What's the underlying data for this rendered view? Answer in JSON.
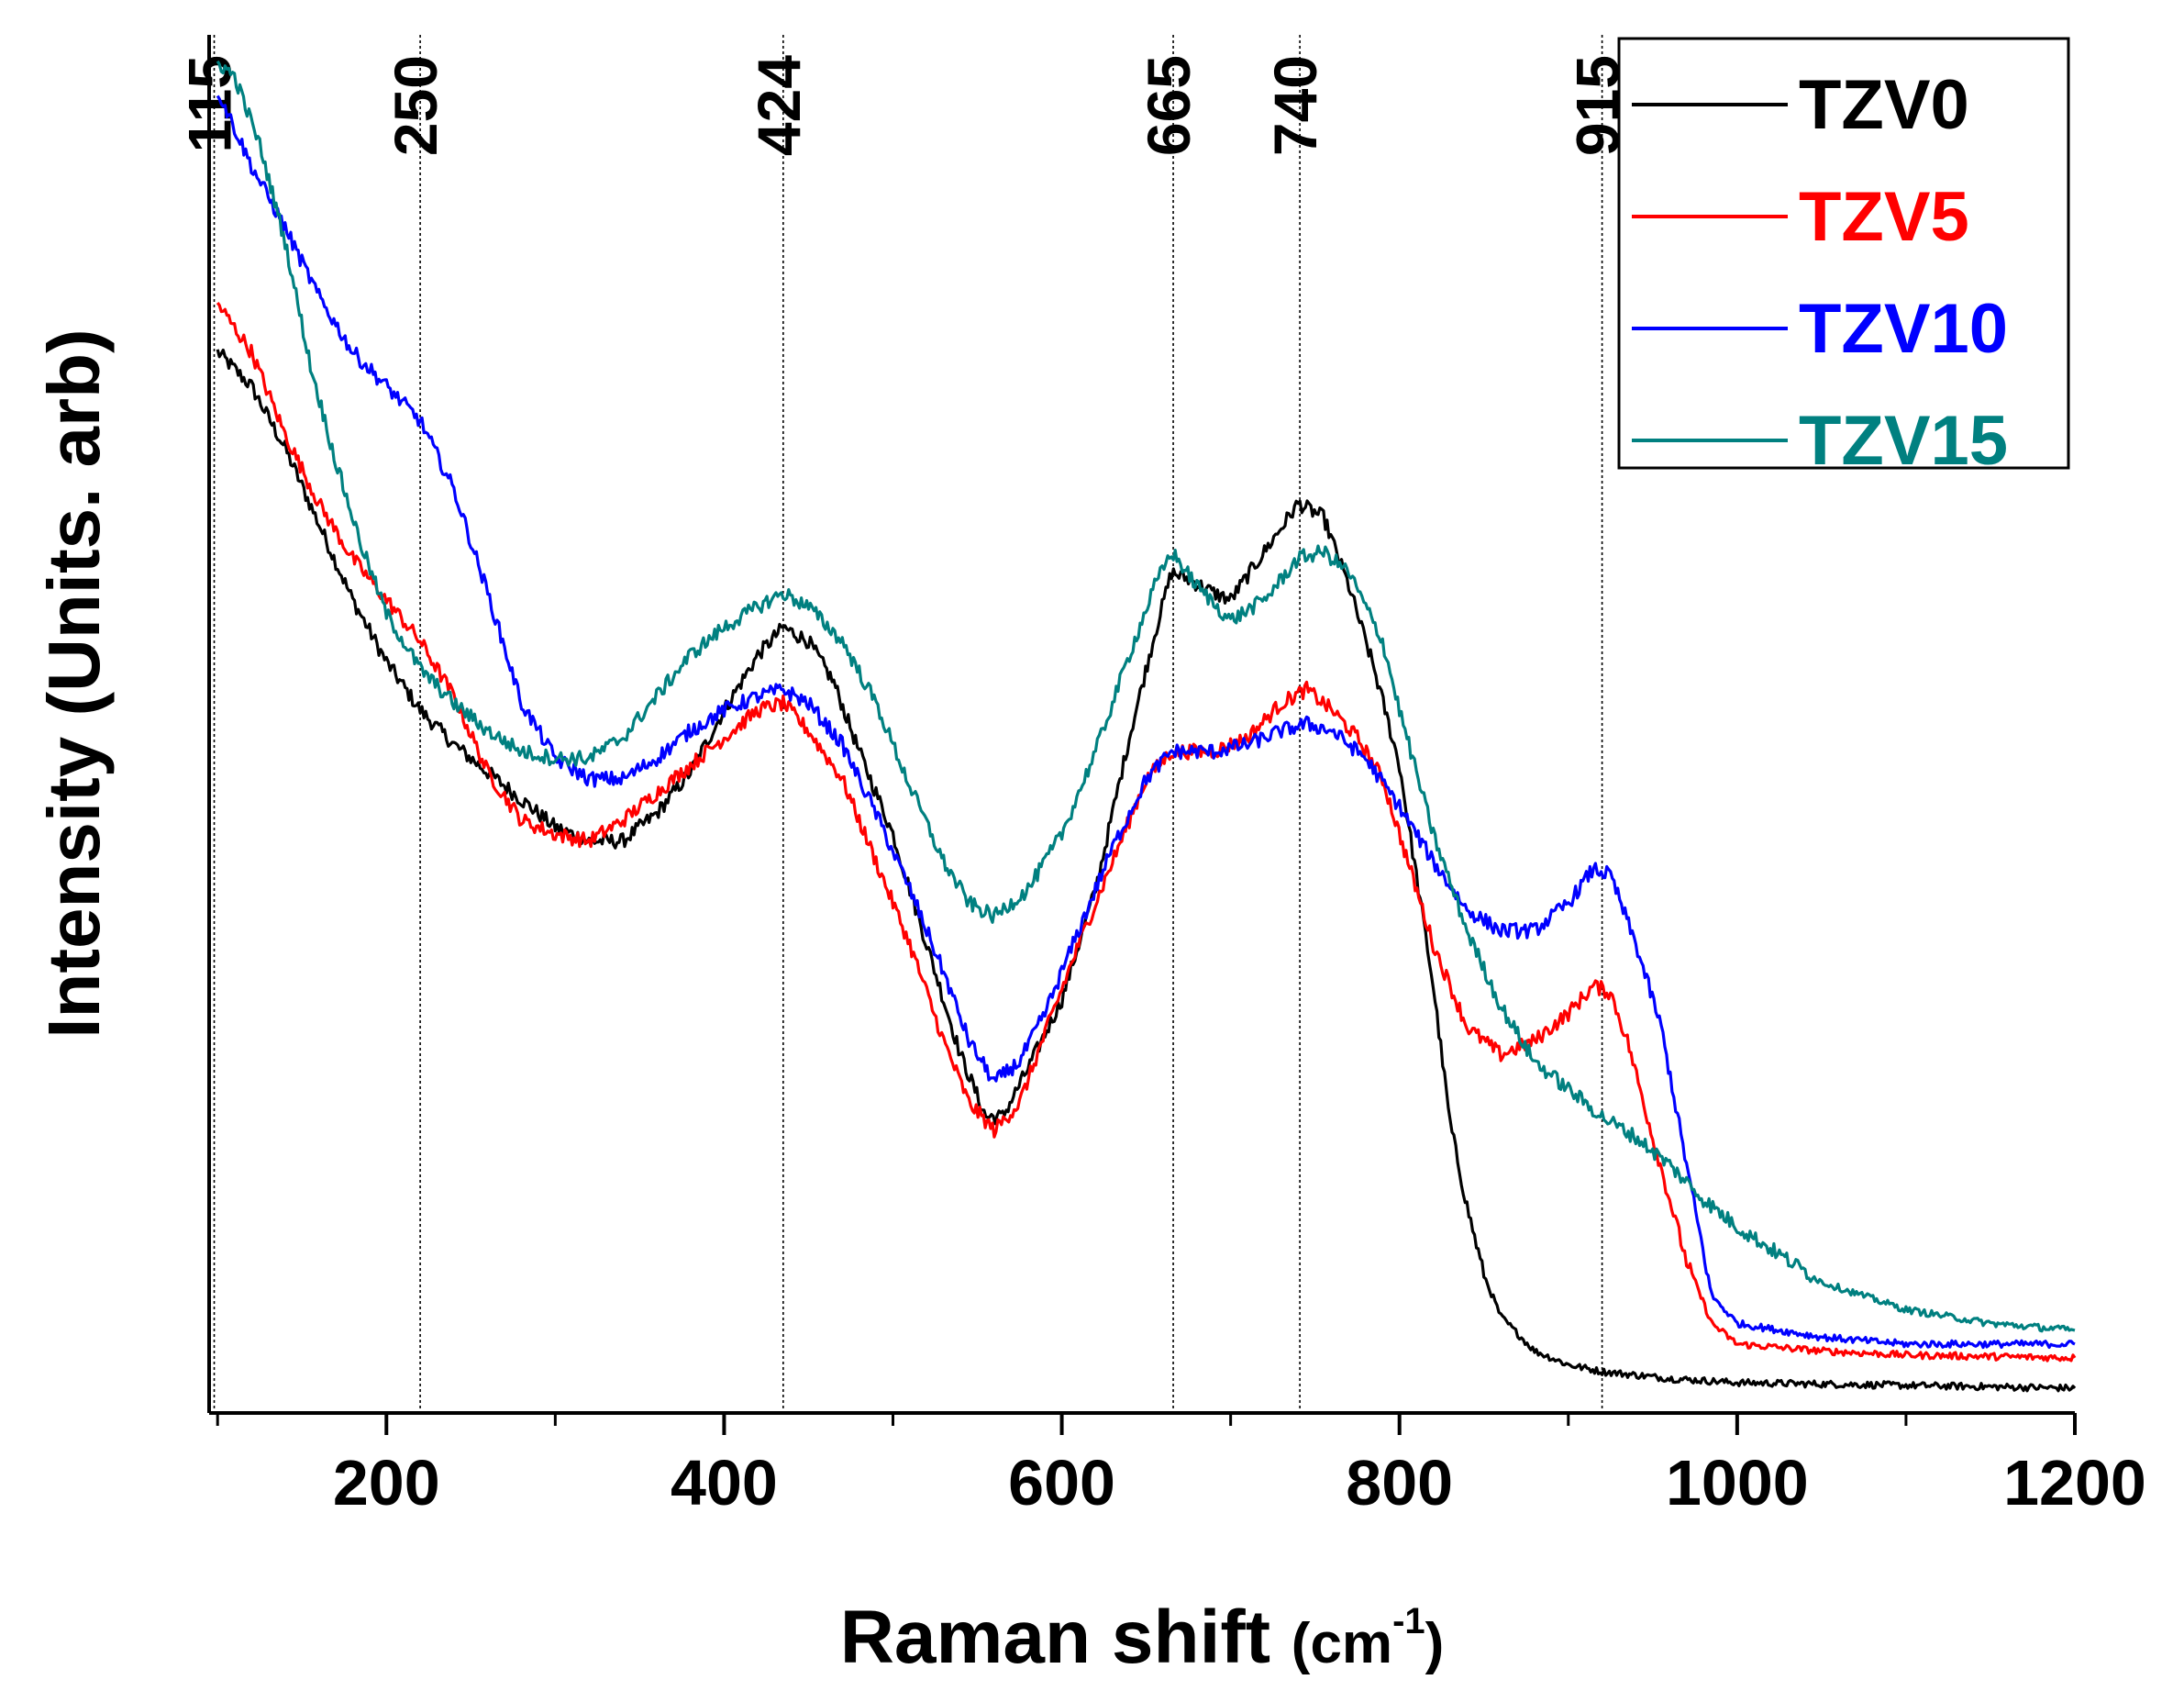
{
  "chart_data": {
    "type": "line",
    "title": "",
    "xlabel": "Raman shift ",
    "xlabel_unit_prefix": "(cm",
    "xlabel_unit_sup": "-1",
    "xlabel_unit_suffix": ")",
    "ylabel": "Intensity (Units. arb)",
    "xlim": [
      95,
      1200
    ],
    "ylim": [
      0,
      100
    ],
    "x_ticks_major": [
      200,
      400,
      600,
      800,
      1000,
      1200
    ],
    "x_tick_labels": [
      "200",
      "400",
      "600",
      "800",
      "1000",
      "1200"
    ],
    "x_ticks_minor": [
      100,
      300,
      500,
      700,
      900,
      1100
    ],
    "grid": false,
    "legend_position": "top-right",
    "reference_lines": [
      {
        "x": 98,
        "label": "115"
      },
      {
        "x": 220,
        "label": "250"
      },
      {
        "x": 435,
        "label": "424"
      },
      {
        "x": 666,
        "label": "665"
      },
      {
        "x": 741,
        "label": "740"
      },
      {
        "x": 920,
        "label": "915"
      }
    ],
    "series": [
      {
        "name": "TZV0",
        "color": "#000000",
        "points": [
          [
            100,
            77
          ],
          [
            120,
            74.5
          ],
          [
            140,
            70
          ],
          [
            160,
            64.5
          ],
          [
            180,
            59
          ],
          [
            200,
            54.5
          ],
          [
            220,
            51
          ],
          [
            240,
            48.5
          ],
          [
            260,
            46.5
          ],
          [
            280,
            44.5
          ],
          [
            300,
            42.5
          ],
          [
            320,
            41.5
          ],
          [
            340,
            41.5
          ],
          [
            360,
            43.5
          ],
          [
            380,
            46.5
          ],
          [
            400,
            51
          ],
          [
            420,
            55
          ],
          [
            435,
            57
          ],
          [
            450,
            56
          ],
          [
            465,
            53
          ],
          [
            480,
            48
          ],
          [
            500,
            42
          ],
          [
            520,
            34
          ],
          [
            540,
            26
          ],
          [
            555,
            21.5
          ],
          [
            565,
            21.5
          ],
          [
            580,
            25
          ],
          [
            600,
            30
          ],
          [
            620,
            38
          ],
          [
            640,
            49
          ],
          [
            655,
            56.5
          ],
          [
            665,
            61
          ],
          [
            675,
            60.5
          ],
          [
            690,
            59.5
          ],
          [
            700,
            59
          ],
          [
            720,
            62.5
          ],
          [
            740,
            66
          ],
          [
            755,
            65
          ],
          [
            770,
            60
          ],
          [
            785,
            54
          ],
          [
            800,
            47
          ],
          [
            810,
            39
          ],
          [
            820,
            31
          ],
          [
            830,
            21
          ],
          [
            840,
            15
          ],
          [
            850,
            10
          ],
          [
            860,
            7
          ],
          [
            880,
            4.5
          ],
          [
            900,
            3.5
          ],
          [
            920,
            3
          ],
          [
            960,
            2.5
          ],
          [
            1000,
            2.2
          ],
          [
            1100,
            2
          ],
          [
            1200,
            1.8
          ]
        ]
      },
      {
        "name": "TZV5",
        "color": "#ff0000",
        "points": [
          [
            100,
            80.5
          ],
          [
            120,
            77
          ],
          [
            140,
            71
          ],
          [
            160,
            66
          ],
          [
            180,
            62
          ],
          [
            200,
            59
          ],
          [
            220,
            56
          ],
          [
            240,
            52
          ],
          [
            260,
            46.5
          ],
          [
            280,
            43
          ],
          [
            300,
            42
          ],
          [
            320,
            41.5
          ],
          [
            340,
            43
          ],
          [
            360,
            45
          ],
          [
            380,
            47
          ],
          [
            400,
            49
          ],
          [
            420,
            51
          ],
          [
            435,
            51.5
          ],
          [
            450,
            49.5
          ],
          [
            470,
            46
          ],
          [
            490,
            40
          ],
          [
            510,
            34
          ],
          [
            530,
            27
          ],
          [
            545,
            22.5
          ],
          [
            560,
            20.5
          ],
          [
            575,
            22.5
          ],
          [
            590,
            27.5
          ],
          [
            610,
            34
          ],
          [
            630,
            40
          ],
          [
            650,
            46
          ],
          [
            665,
            48
          ],
          [
            690,
            48
          ],
          [
            710,
            49
          ],
          [
            730,
            51.5
          ],
          [
            745,
            52.5
          ],
          [
            760,
            51
          ],
          [
            775,
            49
          ],
          [
            790,
            46
          ],
          [
            805,
            40
          ],
          [
            820,
            34
          ],
          [
            840,
            28
          ],
          [
            860,
            26
          ],
          [
            880,
            27
          ],
          [
            900,
            29
          ],
          [
            915,
            31
          ],
          [
            925,
            30.5
          ],
          [
            935,
            27
          ],
          [
            950,
            20
          ],
          [
            970,
            11
          ],
          [
            985,
            6.5
          ],
          [
            1000,
            5
          ],
          [
            1050,
            4.5
          ],
          [
            1100,
            4.2
          ],
          [
            1200,
            4
          ]
        ]
      },
      {
        "name": "TZV10",
        "color": "#0000ff",
        "points": [
          [
            100,
            96
          ],
          [
            120,
            90.5
          ],
          [
            140,
            86
          ],
          [
            160,
            81
          ],
          [
            180,
            77
          ],
          [
            200,
            74.5
          ],
          [
            220,
            72
          ],
          [
            240,
            67
          ],
          [
            260,
            59.5
          ],
          [
            280,
            51.5
          ],
          [
            300,
            47.5
          ],
          [
            320,
            46
          ],
          [
            340,
            46
          ],
          [
            360,
            47.5
          ],
          [
            380,
            49.5
          ],
          [
            400,
            51
          ],
          [
            420,
            52
          ],
          [
            435,
            52.5
          ],
          [
            450,
            51.5
          ],
          [
            470,
            48.5
          ],
          [
            490,
            43.5
          ],
          [
            510,
            38
          ],
          [
            530,
            32
          ],
          [
            545,
            27
          ],
          [
            560,
            24
          ],
          [
            575,
            25.5
          ],
          [
            590,
            29
          ],
          [
            610,
            35
          ],
          [
            630,
            41
          ],
          [
            650,
            46
          ],
          [
            665,
            48
          ],
          [
            690,
            48
          ],
          [
            710,
            48.5
          ],
          [
            730,
            49.5
          ],
          [
            745,
            50
          ],
          [
            760,
            49.5
          ],
          [
            780,
            47.5
          ],
          [
            800,
            44
          ],
          [
            820,
            40
          ],
          [
            840,
            36.5
          ],
          [
            860,
            35
          ],
          [
            880,
            35
          ],
          [
            900,
            37
          ],
          [
            915,
            39.5
          ],
          [
            925,
            39
          ],
          [
            940,
            34
          ],
          [
            955,
            28
          ],
          [
            970,
            18
          ],
          [
            985,
            8.5
          ],
          [
            1000,
            6.5
          ],
          [
            1050,
            5.5
          ],
          [
            1100,
            5
          ],
          [
            1200,
            5
          ]
        ]
      },
      {
        "name": "TZV15",
        "color": "#008080",
        "points": [
          [
            100,
            98
          ],
          [
            110,
            97
          ],
          [
            125,
            92
          ],
          [
            140,
            85
          ],
          [
            155,
            76
          ],
          [
            170,
            69
          ],
          [
            185,
            63
          ],
          [
            200,
            58
          ],
          [
            220,
            54
          ],
          [
            240,
            51.5
          ],
          [
            260,
            49.5
          ],
          [
            280,
            48
          ],
          [
            300,
            47.5
          ],
          [
            320,
            47.5
          ],
          [
            340,
            49
          ],
          [
            360,
            52
          ],
          [
            380,
            55
          ],
          [
            400,
            57
          ],
          [
            420,
            58.5
          ],
          [
            435,
            59.5
          ],
          [
            450,
            58.5
          ],
          [
            470,
            56
          ],
          [
            490,
            51.5
          ],
          [
            510,
            45.5
          ],
          [
            530,
            40
          ],
          [
            545,
            37
          ],
          [
            560,
            36
          ],
          [
            580,
            38
          ],
          [
            600,
            42
          ],
          [
            620,
            48
          ],
          [
            640,
            55
          ],
          [
            655,
            60
          ],
          [
            665,
            62.5
          ],
          [
            680,
            60
          ],
          [
            700,
            57.5
          ],
          [
            720,
            59
          ],
          [
            740,
            62
          ],
          [
            755,
            62.5
          ],
          [
            770,
            61
          ],
          [
            790,
            56
          ],
          [
            800,
            51
          ],
          [
            820,
            42
          ],
          [
            840,
            35
          ],
          [
            860,
            29.5
          ],
          [
            880,
            25.5
          ],
          [
            900,
            23.5
          ],
          [
            920,
            21.5
          ],
          [
            940,
            20
          ],
          [
            960,
            18
          ],
          [
            980,
            15.5
          ],
          [
            1000,
            13.5
          ],
          [
            1050,
            9.5
          ],
          [
            1100,
            7.5
          ],
          [
            1150,
            6.5
          ],
          [
            1200,
            6
          ]
        ]
      }
    ]
  }
}
